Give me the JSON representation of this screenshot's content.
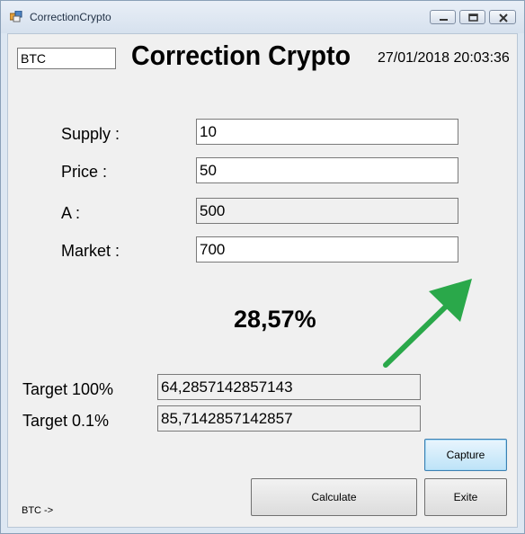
{
  "window": {
    "title": "CorrectionCrypto",
    "header_title": "Correction Crypto",
    "datetime": "27/01/2018 20:03:36"
  },
  "coin": {
    "value": "BTC"
  },
  "form": {
    "supply": {
      "label": "Supply :",
      "value": "10"
    },
    "price": {
      "label": "Price :",
      "value": "50"
    },
    "a": {
      "label": "A :",
      "value": "500"
    },
    "market": {
      "label": "Market :",
      "value": "700"
    }
  },
  "result": {
    "percent": "28,57%"
  },
  "targets": {
    "t100": {
      "label": "Target 100%",
      "value": "64,2857142857143"
    },
    "t01": {
      "label": "Target 0.1%",
      "value": "85,7142857142857"
    }
  },
  "buttons": {
    "capture": "Capture",
    "calculate": "Calculate",
    "exit": "Exite"
  },
  "status": {
    "text": "BTC ->"
  },
  "colors": {
    "arrow": "#2aa84a"
  }
}
